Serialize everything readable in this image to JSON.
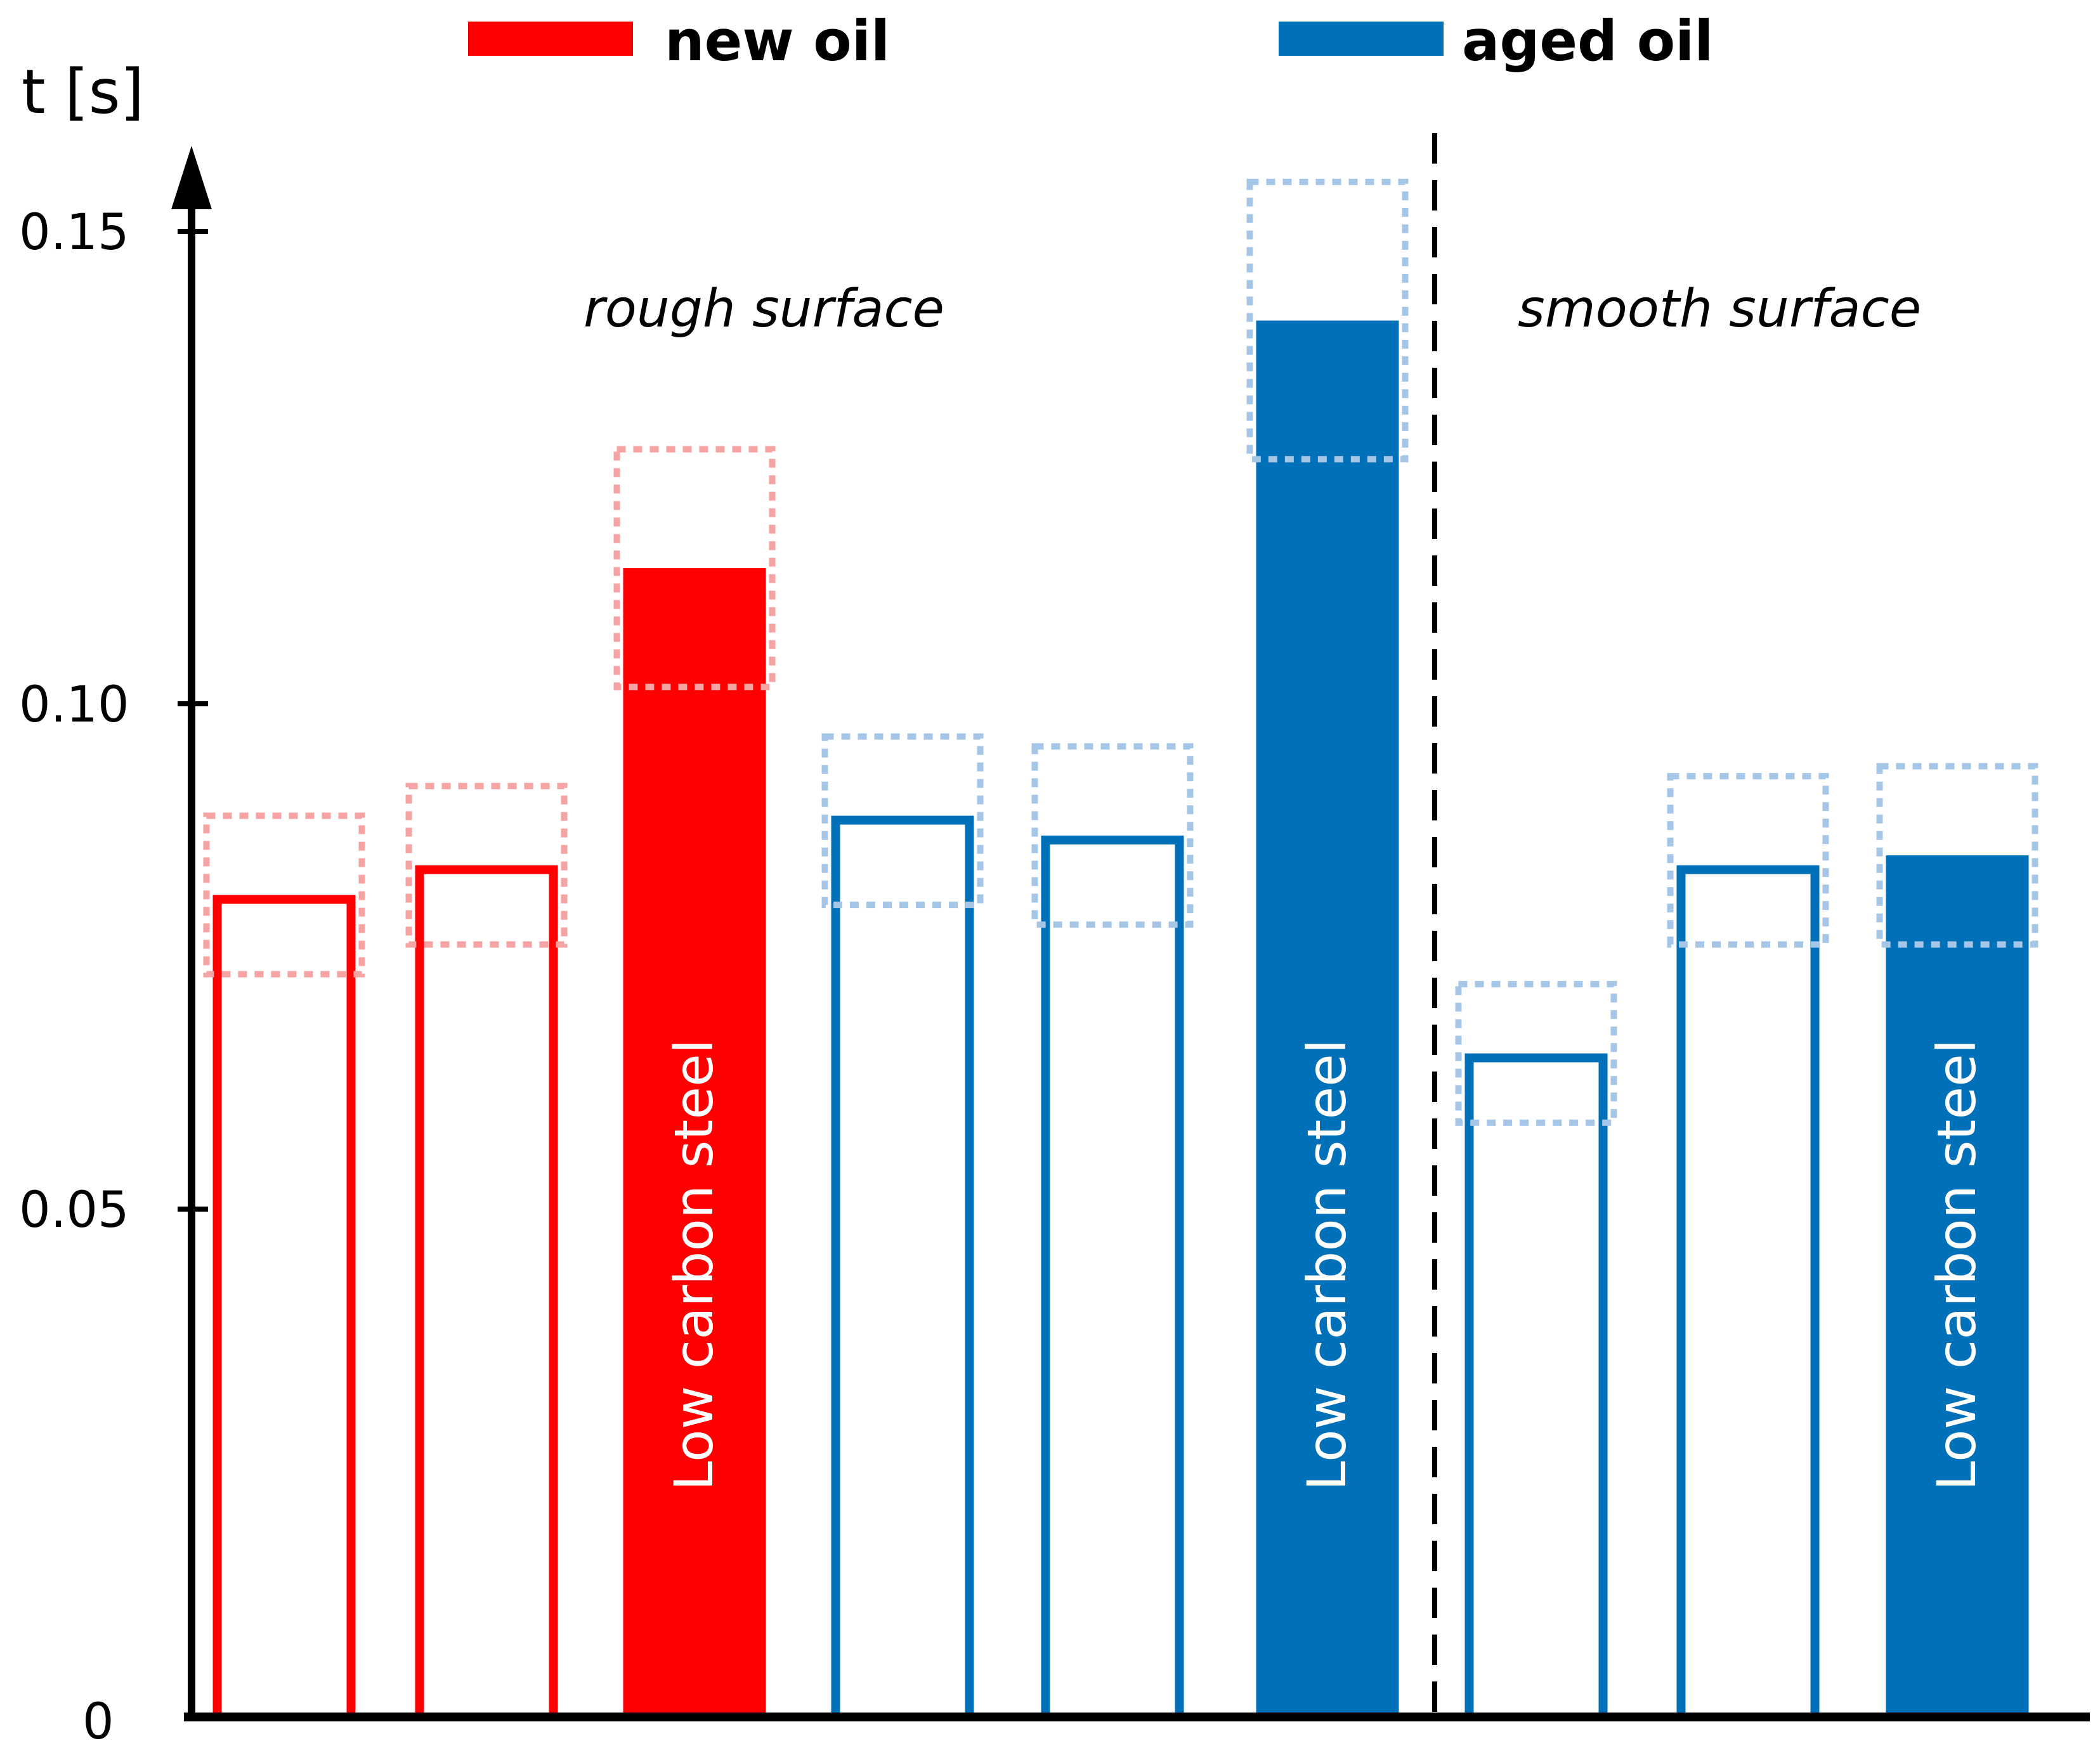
{
  "chart_data": {
    "type": "bar",
    "title": "",
    "ylabel": "t [s]",
    "xlabel": "",
    "ylim": [
      0,
      0.16
    ],
    "yticks": [
      0,
      0.05,
      0.1,
      0.15
    ],
    "ytick_labels": [
      "0",
      "0.05",
      "0.10",
      "0.15"
    ],
    "legend": [
      {
        "name": "new oil",
        "color": "#ff0000"
      },
      {
        "name": "aged oil",
        "color": "#0070b8"
      }
    ],
    "legend_position": "top",
    "regions": [
      {
        "label": "rough surface",
        "bars": [
          0,
          1,
          2,
          3,
          4,
          5
        ]
      },
      {
        "label": "smooth surface",
        "bars": [
          6,
          7,
          8
        ]
      }
    ],
    "bars": [
      {
        "series": "new oil",
        "value": 0.083,
        "range": [
          0.075,
          0.091
        ],
        "filled": false,
        "label": ""
      },
      {
        "series": "new oil",
        "value": 0.086,
        "range": [
          0.078,
          0.094
        ],
        "filled": false,
        "label": ""
      },
      {
        "series": "new oil",
        "value": 0.116,
        "range": [
          0.104,
          0.128
        ],
        "filled": true,
        "label": "Low carbon steel"
      },
      {
        "series": "aged oil",
        "value": 0.091,
        "range": [
          0.082,
          0.099
        ],
        "filled": false,
        "label": ""
      },
      {
        "series": "aged oil",
        "value": 0.089,
        "range": [
          0.08,
          0.098
        ],
        "filled": false,
        "label": ""
      },
      {
        "series": "aged oil",
        "value": 0.141,
        "range": [
          0.127,
          0.155
        ],
        "filled": true,
        "label": "Low carbon steel"
      },
      {
        "series": "aged oil",
        "value": 0.067,
        "range": [
          0.06,
          0.074
        ],
        "filled": false,
        "label": ""
      },
      {
        "series": "aged oil",
        "value": 0.086,
        "range": [
          0.078,
          0.095
        ],
        "filled": false,
        "label": ""
      },
      {
        "series": "aged oil",
        "value": 0.087,
        "range": [
          0.078,
          0.096
        ],
        "filled": true,
        "label": "Low carbon steel"
      }
    ]
  },
  "colors": {
    "new_oil": "#ff0000",
    "new_oil_light": "#f5a3a3",
    "aged_oil": "#0070b8",
    "aged_oil_light": "#a6c6e8",
    "axis": "#000000"
  }
}
